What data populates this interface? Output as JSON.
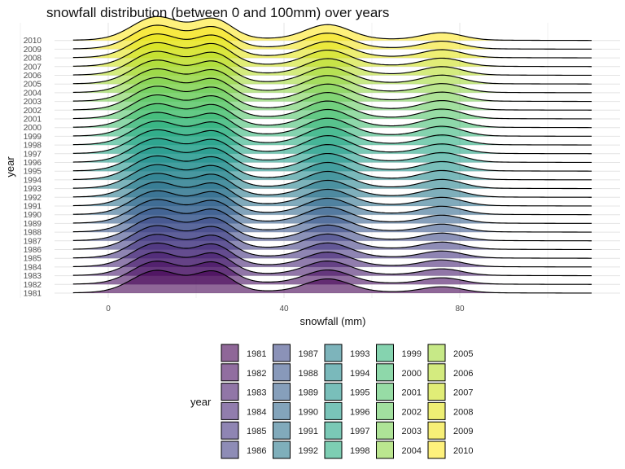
{
  "chart_data": {
    "type": "ridgeline",
    "title": "snowfall distribution (between 0 and 100mm) over years",
    "xlabel": "snowfall (mm)",
    "ylabel": "year",
    "xlim": [
      -8,
      110
    ],
    "x_ticks": [
      0,
      40,
      80
    ],
    "grid": true,
    "legend_title": "year",
    "legend_position": "bottom",
    "fill_alpha": 0.6,
    "density_peaks_mm": [
      11,
      24,
      50,
      76
    ],
    "series": [
      {
        "name": "1981",
        "color": "#440154",
        "heights": [
          0.95,
          0.85,
          0.55,
          0.25
        ]
      },
      {
        "name": "1982",
        "color": "#470E61",
        "heights": [
          0.97,
          0.86,
          0.56,
          0.26
        ]
      },
      {
        "name": "1983",
        "color": "#481B6D",
        "heights": [
          0.98,
          0.87,
          0.57,
          0.27
        ]
      },
      {
        "name": "1984",
        "color": "#472777",
        "heights": [
          1.0,
          0.88,
          0.58,
          0.28
        ]
      },
      {
        "name": "1985",
        "color": "#453381",
        "heights": [
          1.0,
          0.88,
          0.6,
          0.29
        ]
      },
      {
        "name": "1986",
        "color": "#423F85",
        "heights": [
          1.0,
          0.88,
          0.61,
          0.3
        ]
      },
      {
        "name": "1987",
        "color": "#3E4A89",
        "heights": [
          1.0,
          0.88,
          0.62,
          0.31
        ]
      },
      {
        "name": "1988",
        "color": "#39558C",
        "heights": [
          1.0,
          0.88,
          0.63,
          0.32
        ]
      },
      {
        "name": "1989",
        "color": "#355F8D",
        "heights": [
          1.0,
          0.88,
          0.64,
          0.33
        ]
      },
      {
        "name": "1990",
        "color": "#31688E",
        "heights": [
          1.0,
          0.88,
          0.65,
          0.34
        ]
      },
      {
        "name": "1991",
        "color": "#2D718E",
        "heights": [
          1.0,
          0.88,
          0.66,
          0.35
        ]
      },
      {
        "name": "1992",
        "color": "#297A8E",
        "heights": [
          1.0,
          0.88,
          0.67,
          0.36
        ]
      },
      {
        "name": "1993",
        "color": "#26828E",
        "heights": [
          1.0,
          0.88,
          0.68,
          0.37
        ]
      },
      {
        "name": "1994",
        "color": "#228B8D",
        "heights": [
          1.0,
          0.88,
          0.69,
          0.38
        ]
      },
      {
        "name": "1995",
        "color": "#1F948C",
        "heights": [
          1.0,
          0.88,
          0.7,
          0.39
        ]
      },
      {
        "name": "1996",
        "color": "#1F9D8A",
        "heights": [
          1.0,
          0.88,
          0.71,
          0.4
        ]
      },
      {
        "name": "1997",
        "color": "#21A585",
        "heights": [
          1.0,
          0.88,
          0.72,
          0.4
        ]
      },
      {
        "name": "1998",
        "color": "#27AD81",
        "heights": [
          1.0,
          0.88,
          0.72,
          0.41
        ]
      },
      {
        "name": "1999",
        "color": "#33B67A",
        "heights": [
          1.0,
          0.88,
          0.72,
          0.41
        ]
      },
      {
        "name": "2000",
        "color": "#42BE71",
        "heights": [
          1.0,
          0.88,
          0.72,
          0.41
        ]
      },
      {
        "name": "2001",
        "color": "#52C569",
        "heights": [
          1.0,
          0.88,
          0.71,
          0.4
        ]
      },
      {
        "name": "2002",
        "color": "#64CB5F",
        "heights": [
          1.0,
          0.88,
          0.7,
          0.39
        ]
      },
      {
        "name": "2003",
        "color": "#78D152",
        "heights": [
          1.0,
          0.88,
          0.69,
          0.38
        ]
      },
      {
        "name": "2004",
        "color": "#8ED645",
        "heights": [
          1.0,
          0.88,
          0.68,
          0.37
        ]
      },
      {
        "name": "2005",
        "color": "#A2DA37",
        "heights": [
          1.0,
          0.88,
          0.67,
          0.36
        ]
      },
      {
        "name": "2006",
        "color": "#B8DE29",
        "heights": [
          1.0,
          0.88,
          0.66,
          0.35
        ]
      },
      {
        "name": "2007",
        "color": "#CDE11D",
        "heights": [
          1.0,
          0.88,
          0.65,
          0.34
        ]
      },
      {
        "name": "2008",
        "color": "#E2E418",
        "heights": [
          1.0,
          0.87,
          0.64,
          0.33
        ]
      },
      {
        "name": "2009",
        "color": "#F2E51D",
        "heights": [
          1.0,
          0.86,
          0.63,
          0.32
        ]
      },
      {
        "name": "2010",
        "color": "#FDE725",
        "heights": [
          1.0,
          0.85,
          0.62,
          0.31
        ]
      }
    ]
  }
}
